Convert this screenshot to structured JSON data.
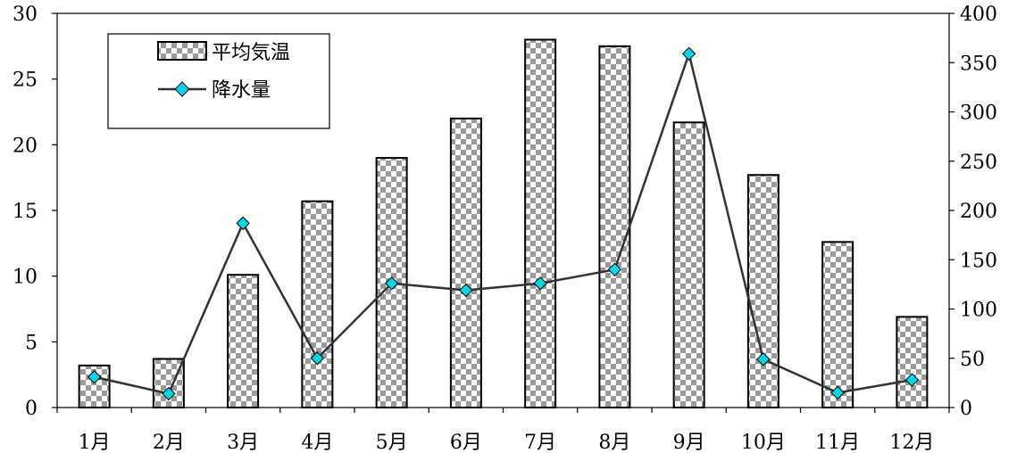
{
  "chart_data": {
    "type": "bar",
    "categories": [
      "1月",
      "2月",
      "3月",
      "4月",
      "5月",
      "6月",
      "7月",
      "8月",
      "9月",
      "10月",
      "11月",
      "12月"
    ],
    "series": [
      {
        "name": "平均気温",
        "type": "bar",
        "axis": "left",
        "values": [
          3.2,
          3.7,
          10.1,
          15.7,
          19.0,
          22.0,
          28.0,
          27.5,
          21.7,
          17.7,
          12.6,
          6.9
        ]
      },
      {
        "name": "降水量",
        "type": "line",
        "axis": "right",
        "marker": "diamond",
        "values": [
          31,
          14,
          187,
          50,
          126,
          119,
          126,
          140,
          359,
          49,
          15,
          28
        ]
      }
    ],
    "y_left": {
      "ylim": [
        0,
        30
      ],
      "ticks": [
        0,
        5,
        10,
        15,
        20,
        25,
        30
      ]
    },
    "y_right": {
      "ylim": [
        0,
        400
      ],
      "ticks": [
        0,
        50,
        100,
        150,
        200,
        250,
        300,
        350,
        400
      ]
    },
    "legend": {
      "position": "top-left"
    },
    "grid": false,
    "colors": {
      "bar_dark": "#9a9a9a",
      "bar_light": "#ffffff",
      "line": "#333333",
      "marker": "#00d8e8"
    }
  }
}
